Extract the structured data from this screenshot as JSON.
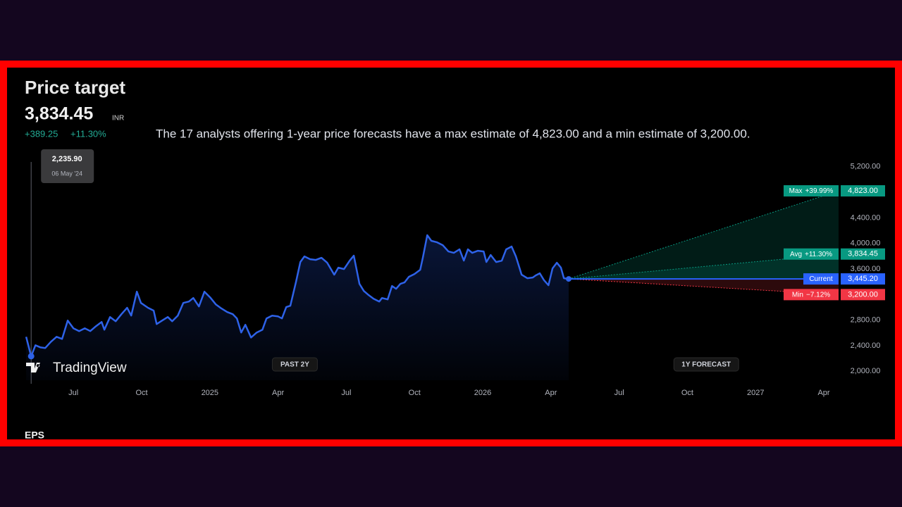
{
  "header": {
    "title": "Price target",
    "price": "3,834.45",
    "currency": "INR",
    "change": "+389.25",
    "change_pct": "+11.30%"
  },
  "summary": "The 17 analysts offering 1-year price forecasts have a max estimate of 4,823.00 and a min estimate of 3,200.00.",
  "brand": "TradingView",
  "next_section": "EPS",
  "chart_data": {
    "type": "line",
    "x": [
      3.92,
      4.14,
      4.33,
      4.54,
      4.76,
      5.01,
      5.26,
      5.5,
      5.75,
      6.0,
      6.25,
      6.5,
      6.74,
      6.99,
      7.24,
      7.36,
      7.61,
      7.86,
      8.11,
      8.36,
      8.54,
      8.79,
      8.97,
      9.28,
      9.53,
      9.66,
      9.9,
      10.15,
      10.34,
      10.59,
      10.83,
      11.08,
      11.27,
      11.52,
      11.76,
      12.01,
      12.26,
      12.51,
      12.76,
      13.01,
      13.19,
      13.38,
      13.56,
      13.81,
      14.06,
      14.31,
      14.49,
      14.74,
      14.99,
      15.17,
      15.36,
      15.54,
      15.79,
      15.98,
      16.16,
      16.41,
      16.66,
      16.91,
      17.16,
      17.47,
      17.65,
      17.9,
      18.15,
      18.33,
      18.58,
      18.77,
      18.95,
      19.2,
      19.45,
      19.57,
      19.82,
      20.01,
      20.19,
      20.38,
      20.56,
      20.75,
      21.0,
      21.25,
      21.37,
      21.56,
      21.74,
      21.99,
      22.24,
      22.49,
      22.73,
      22.98,
      23.17,
      23.35,
      23.54,
      23.79,
      24.04,
      24.16,
      24.35,
      24.59,
      24.84,
      25.03,
      25.27,
      25.46,
      25.71,
      25.96,
      26.2,
      26.33,
      26.51,
      26.7,
      26.89,
      27.07,
      27.26,
      27.44,
      27.57,
      27.78
    ],
    "series": [
      {
        "color": "#2e62e8",
        "values": [
          2540,
          2235.9,
          2408,
          2375,
          2364,
          2463,
          2540,
          2507,
          2794,
          2673,
          2629,
          2673,
          2629,
          2706,
          2772,
          2651,
          2849,
          2783,
          2893,
          2993,
          2871,
          3246,
          3070,
          2993,
          2949,
          2739,
          2794,
          2849,
          2783,
          2871,
          3070,
          3092,
          3147,
          3015,
          3246,
          3158,
          3048,
          2982,
          2927,
          2893,
          2827,
          2607,
          2728,
          2529,
          2607,
          2651,
          2827,
          2871,
          2860,
          2827,
          3004,
          3026,
          3401,
          3710,
          3798,
          3754,
          3743,
          3776,
          3699,
          3511,
          3621,
          3599,
          3732,
          3809,
          3368,
          3257,
          3202,
          3136,
          3092,
          3147,
          3125,
          3335,
          3291,
          3368,
          3390,
          3478,
          3522,
          3588,
          3787,
          4129,
          4041,
          4018,
          3974,
          3875,
          3853,
          3908,
          3732,
          3908,
          3853,
          3886,
          3875,
          3710,
          3820,
          3710,
          3732,
          3908,
          3952,
          3798,
          3511,
          3456,
          3467,
          3500,
          3533,
          3423,
          3346,
          3610,
          3699,
          3621,
          3456,
          3445.2
        ]
      }
    ],
    "xlim": [
      3.7,
      39.65
    ],
    "ylim": [
      1860,
      5330
    ],
    "xticks": [
      {
        "value": 6,
        "label": "Jul"
      },
      {
        "value": 9,
        "label": "Oct"
      },
      {
        "value": 12,
        "label": "2025"
      },
      {
        "value": 15,
        "label": "Apr"
      },
      {
        "value": 18,
        "label": "Jul"
      },
      {
        "value": 21,
        "label": "Oct"
      },
      {
        "value": 24,
        "label": "2026"
      },
      {
        "value": 27,
        "label": "Apr"
      },
      {
        "value": 30,
        "label": "Jul"
      },
      {
        "value": 33,
        "label": "Oct"
      },
      {
        "value": 36,
        "label": "2027"
      },
      {
        "value": 39,
        "label": "Apr"
      }
    ],
    "yticks": [
      {
        "value": 2000,
        "label": "2,000.00"
      },
      {
        "value": 2400,
        "label": "2,400.00"
      },
      {
        "value": 2800,
        "label": "2,800.00"
      },
      {
        "value": 3600,
        "label": "3,600.00"
      },
      {
        "value": 4000,
        "label": "4,000.00"
      },
      {
        "value": 4400,
        "label": "4,400.00"
      },
      {
        "value": 5200,
        "label": "5,200.00"
      }
    ],
    "grid": false,
    "tooltip": {
      "value": 2235.9,
      "label": "2,235.90",
      "date": "06 May '24"
    },
    "current": {
      "name": "Current",
      "value": 3445.2,
      "value_label": "3,445.20",
      "color": "#2962ff"
    },
    "targets": [
      {
        "name": "Max",
        "change": "+39.99%",
        "value": 4823,
        "value_label": "4,823.00",
        "color": "#089981"
      },
      {
        "name": "Avg",
        "change": "+11.30%",
        "value": 3834.45,
        "value_label": "3,834.45",
        "color": "#089981"
      },
      {
        "name": "Min",
        "change": "−7.12%",
        "value": 3200,
        "value_label": "3,200.00",
        "color": "#f23645"
      }
    ],
    "periods": [
      "PAST 2Y",
      "1Y FORECAST"
    ]
  }
}
